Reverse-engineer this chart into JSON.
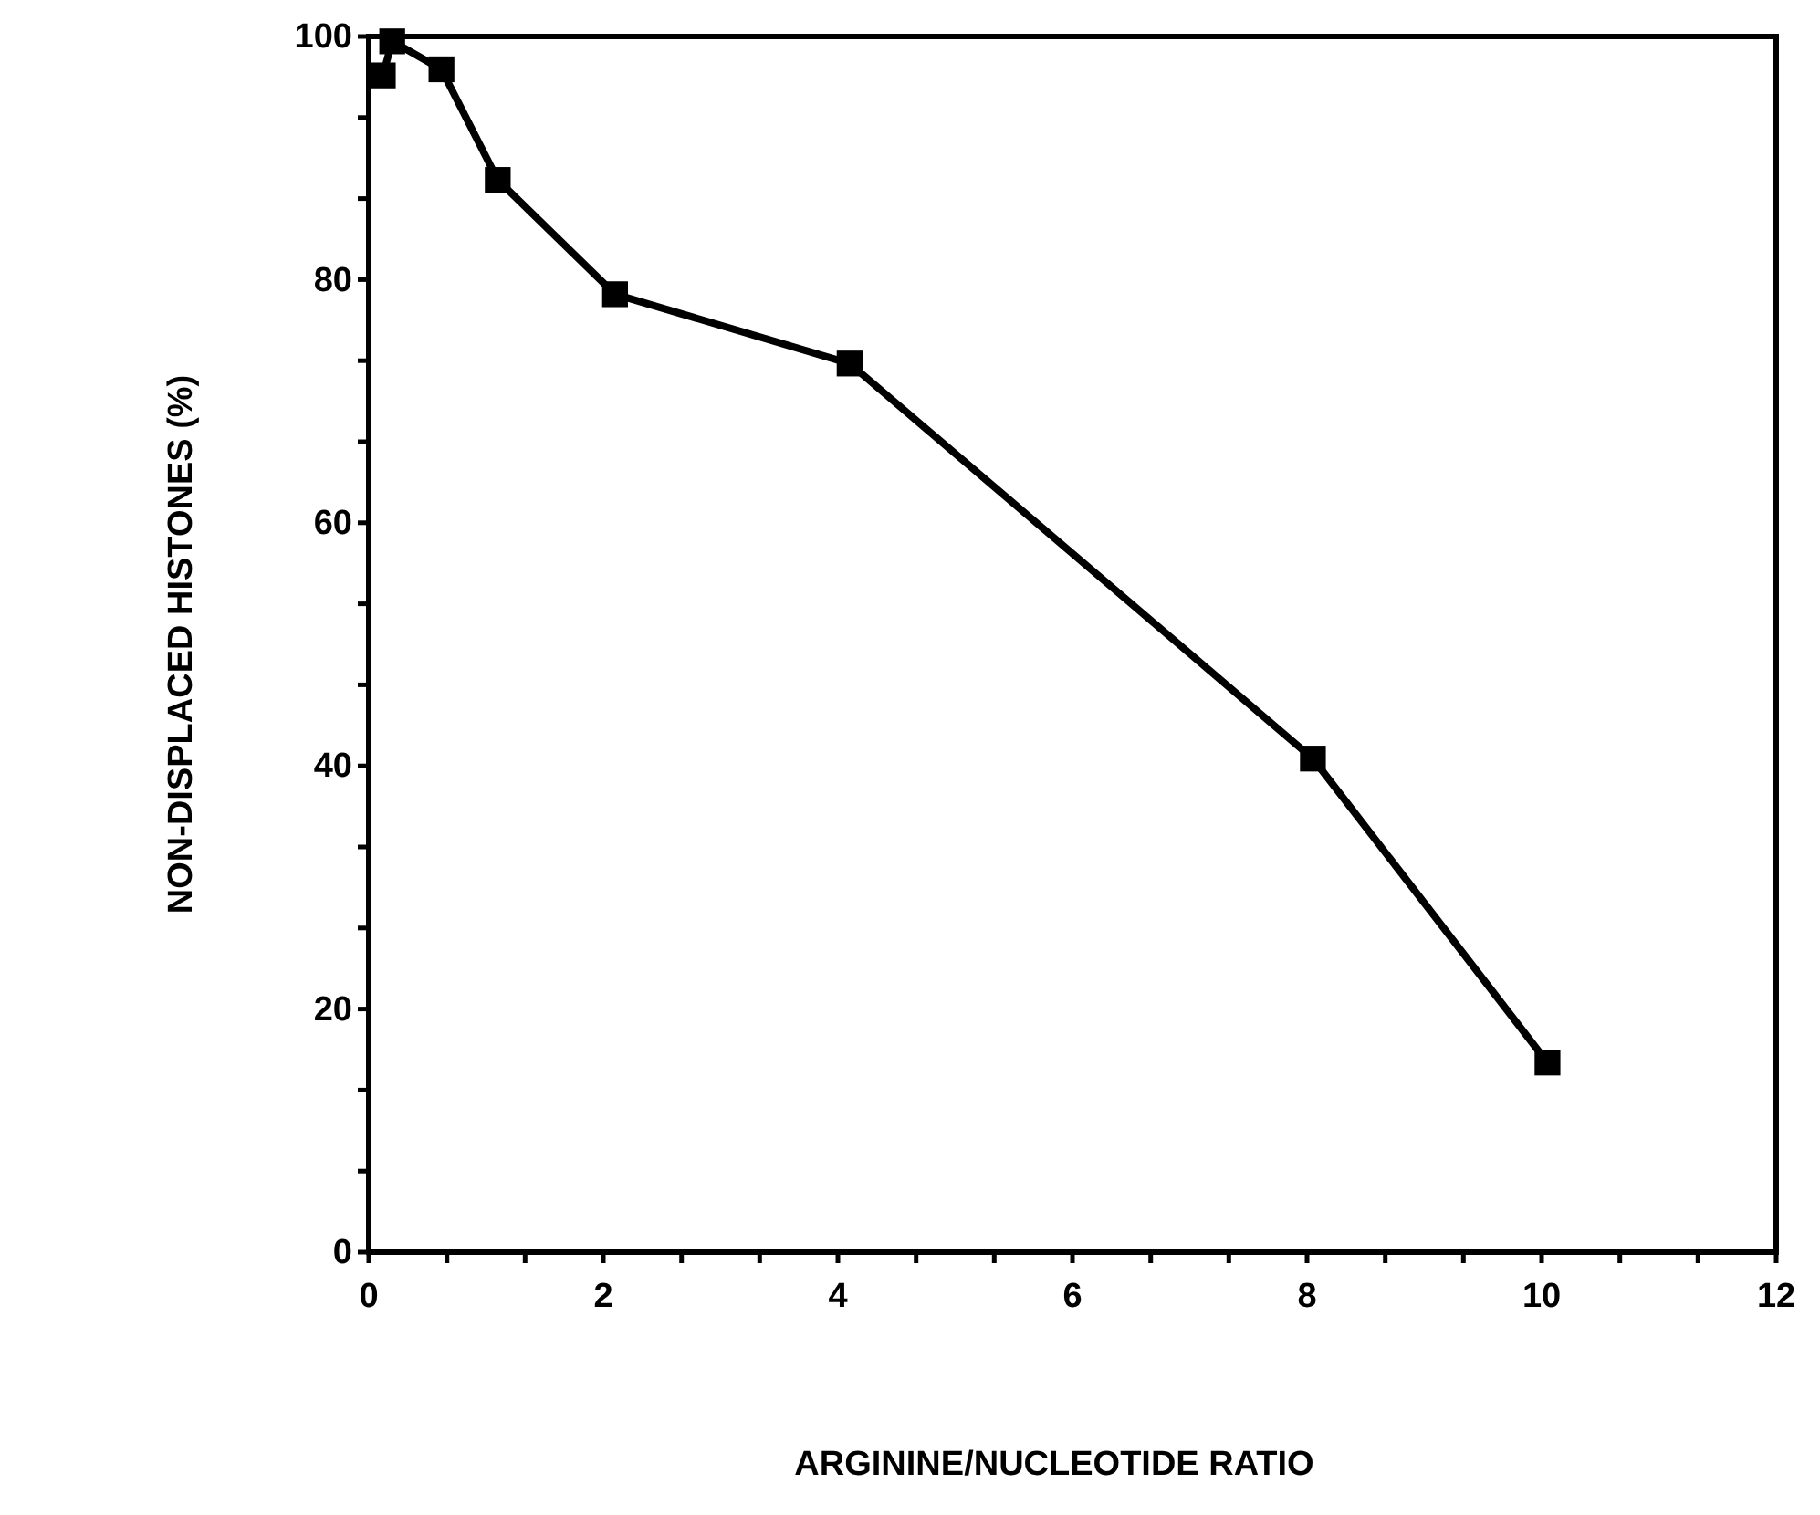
{
  "chart_data": {
    "type": "line",
    "xlabel": "ARGININE/NUCLEOTIDE RATIO",
    "ylabel": "NON-DISPLACED  HISTONES  (%)",
    "x": [
      0.12,
      0.2,
      0.62,
      1.1,
      2.1,
      4.1,
      8.05,
      10.05
    ],
    "series": [
      {
        "color": "#000000",
        "values": [
          96.8,
          99.6,
          97.3,
          88.2,
          78.8,
          73.1,
          40.6,
          15.6
        ]
      }
    ],
    "xlim": [
      0,
      12
    ],
    "ylim": [
      0,
      100
    ],
    "xticks": [
      0,
      {
        "value": 0.667,
        "label": null
      },
      {
        "value": 1.333,
        "label": null
      },
      2,
      {
        "value": 2.667,
        "label": null
      },
      {
        "value": 3.333,
        "label": null
      },
      4,
      {
        "value": 4.667,
        "label": null
      },
      {
        "value": 5.333,
        "label": null
      },
      6,
      {
        "value": 6.667,
        "label": null
      },
      {
        "value": 7.333,
        "label": null
      },
      8,
      {
        "value": 8.667,
        "label": null
      },
      {
        "value": 9.333,
        "label": null
      },
      10,
      {
        "value": 10.667,
        "label": null
      },
      {
        "value": 11.333,
        "label": null
      },
      12
    ],
    "yticks": [
      0,
      {
        "value": 6.667,
        "label": null
      },
      {
        "value": 13.333,
        "label": null
      },
      20,
      {
        "value": 26.667,
        "label": null
      },
      {
        "value": 33.333,
        "label": null
      },
      40,
      {
        "value": 46.667,
        "label": null
      },
      {
        "value": 53.333,
        "label": null
      },
      60,
      {
        "value": 66.667,
        "label": null
      },
      {
        "value": 73.333,
        "label": null
      },
      80,
      {
        "value": 86.667,
        "label": null
      },
      {
        "value": 93.333,
        "label": null
      },
      100
    ],
    "marker": "square",
    "line_style": "solid",
    "grid": false
  }
}
